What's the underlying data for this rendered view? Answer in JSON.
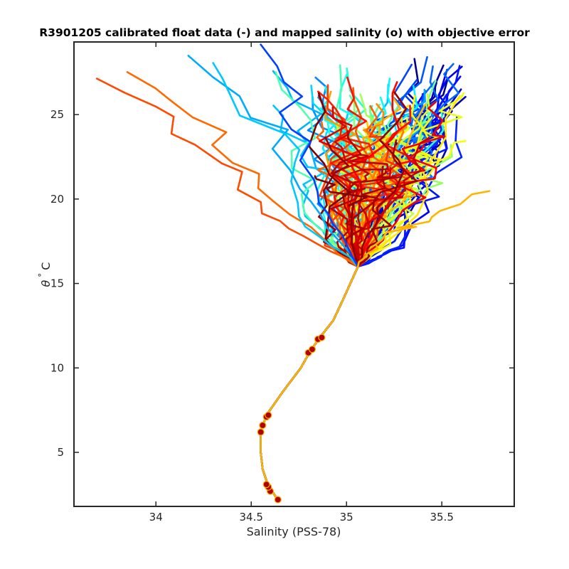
{
  "chart_data": {
    "type": "line",
    "title": "R3901205 calibrated float data (-) and mapped salinity (o) with objective error",
    "xlabel": "Salinity (PSS-78)",
    "ylabel_symbol": "θ",
    "ylabel_degree": "°",
    "ylabel_unit": "C",
    "xlim": [
      33.57,
      35.88
    ],
    "ylim": [
      1.8,
      29.3
    ],
    "xticks": [
      34,
      34.5,
      35,
      35.5
    ],
    "xtick_labels": [
      "34",
      "34.5",
      "35",
      "35.5"
    ],
    "yticks": [
      5,
      10,
      15,
      20,
      25
    ],
    "ytick_labels": [
      "5",
      "10",
      "15",
      "20",
      "25"
    ],
    "grid": false,
    "legend": "none",
    "colormap": "jet",
    "profile_count": 120,
    "deep_branch": {
      "theta": [
        2.2,
        3.0,
        4.0,
        5.0,
        6.2,
        7.2,
        8.5,
        10.0,
        11.0,
        11.8,
        12.8,
        14.0,
        15.0,
        16.0
      ],
      "salinity": [
        34.64,
        34.59,
        34.56,
        34.55,
        34.55,
        34.58,
        34.66,
        34.76,
        34.81,
        34.86,
        34.93,
        34.98,
        35.02,
        35.06
      ]
    },
    "mapped_salinity_points": [
      {
        "salinity": 34.64,
        "theta": 2.2
      },
      {
        "salinity": 34.6,
        "theta": 2.7
      },
      {
        "salinity": 34.59,
        "theta": 2.95
      },
      {
        "salinity": 34.58,
        "theta": 3.1
      },
      {
        "salinity": 34.55,
        "theta": 6.2
      },
      {
        "salinity": 34.56,
        "theta": 6.6
      },
      {
        "salinity": 34.58,
        "theta": 7.1
      },
      {
        "salinity": 34.59,
        "theta": 7.2
      },
      {
        "salinity": 34.8,
        "theta": 10.9
      },
      {
        "salinity": 34.82,
        "theta": 11.1
      },
      {
        "salinity": 34.85,
        "theta": 11.7
      },
      {
        "salinity": 34.87,
        "theta": 11.8
      }
    ],
    "extreme_profiles": [
      {
        "salinity_top": 33.69,
        "theta_top": 27.0,
        "color": "#ff4a00"
      },
      {
        "salinity_top": 33.85,
        "theta_top": 27.5,
        "color": "#ff6a00"
      },
      {
        "salinity_top": 34.17,
        "theta_top": 28.4,
        "color": "#00aaff"
      },
      {
        "salinity_top": 34.3,
        "theta_top": 28.2,
        "color": "#00c8ff"
      },
      {
        "salinity_top": 34.55,
        "theta_top": 29.0,
        "color": "#0040ff"
      },
      {
        "salinity_top": 35.75,
        "theta_top": 20.4,
        "color": "#ffb400"
      }
    ]
  }
}
